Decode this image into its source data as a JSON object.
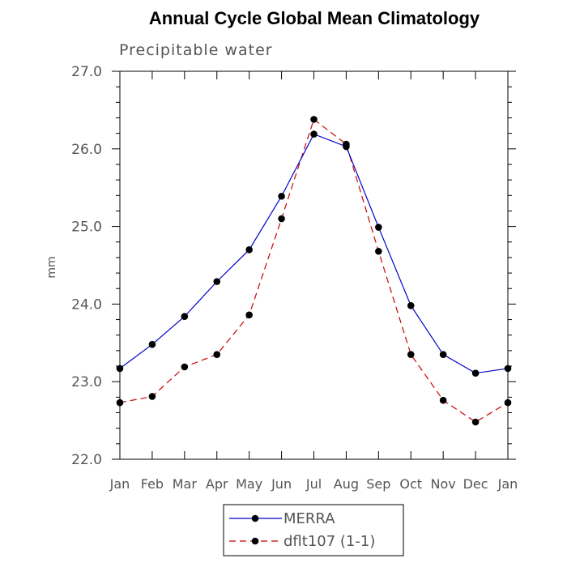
{
  "chart_data": {
    "type": "line",
    "title": "Annual Cycle Global Mean Climatology",
    "subtitle": "Precipitable water",
    "ylabel": "mm",
    "xlabel": "",
    "categories": [
      "Jan",
      "Feb",
      "Mar",
      "Apr",
      "May",
      "Jun",
      "Jul",
      "Aug",
      "Sep",
      "Oct",
      "Nov",
      "Dec",
      "Jan"
    ],
    "ylim": [
      22.0,
      27.0
    ],
    "yticks": [
      "22.0",
      "23.0",
      "24.0",
      "25.0",
      "26.0",
      "27.0"
    ],
    "series": [
      {
        "name": "MERRA",
        "color": "#0000cc",
        "dash": "solid",
        "values": [
          23.17,
          23.48,
          23.84,
          24.29,
          24.7,
          25.39,
          26.19,
          26.03,
          24.99,
          23.98,
          23.35,
          23.11,
          23.17
        ]
      },
      {
        "name": "dflt107 (1-1)",
        "color": "#cc0000",
        "dash": "dashed",
        "values": [
          22.73,
          22.81,
          23.19,
          23.35,
          23.86,
          25.1,
          26.38,
          26.06,
          24.68,
          23.35,
          22.76,
          22.48,
          22.73
        ]
      }
    ],
    "legend_position": "bottom-center"
  }
}
